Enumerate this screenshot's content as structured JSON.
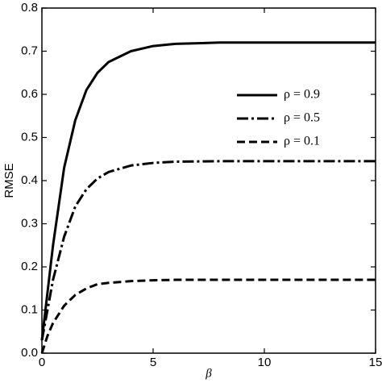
{
  "chart_data": {
    "type": "line",
    "xlabel": "β",
    "ylabel": "RMSE",
    "x": [
      0,
      0.25,
      0.5,
      1,
      1.5,
      2,
      2.5,
      3,
      4,
      5,
      6,
      8,
      10,
      12,
      15
    ],
    "series": [
      {
        "name": "ρ = 0.9",
        "color": "#000000",
        "dash": "solid",
        "values": [
          0.03,
          0.14,
          0.25,
          0.43,
          0.54,
          0.61,
          0.65,
          0.675,
          0.7,
          0.712,
          0.717,
          0.72,
          0.72,
          0.72,
          0.72
        ]
      },
      {
        "name": "ρ = 0.5",
        "color": "#000000",
        "dash": "dashdot",
        "values": [
          0.03,
          0.1,
          0.17,
          0.27,
          0.34,
          0.38,
          0.405,
          0.42,
          0.435,
          0.441,
          0.444,
          0.445,
          0.445,
          0.445,
          0.445
        ]
      },
      {
        "name": "ρ = 0.1",
        "color": "#000000",
        "dash": "dash",
        "values": [
          0,
          0.04,
          0.07,
          0.11,
          0.135,
          0.15,
          0.16,
          0.163,
          0.167,
          0.169,
          0.17,
          0.17,
          0.17,
          0.17,
          0.17
        ]
      }
    ],
    "xlim": [
      0,
      15
    ],
    "xticks": [
      0,
      5,
      10,
      15
    ],
    "ylim": [
      0,
      0.8
    ],
    "yticks": [
      {
        "value": 0,
        "label": "0.0"
      },
      0.1,
      0.2,
      0.3,
      0.4,
      0.5,
      0.6,
      0.7,
      0.8
    ],
    "grid": false,
    "legend": "upper right"
  }
}
